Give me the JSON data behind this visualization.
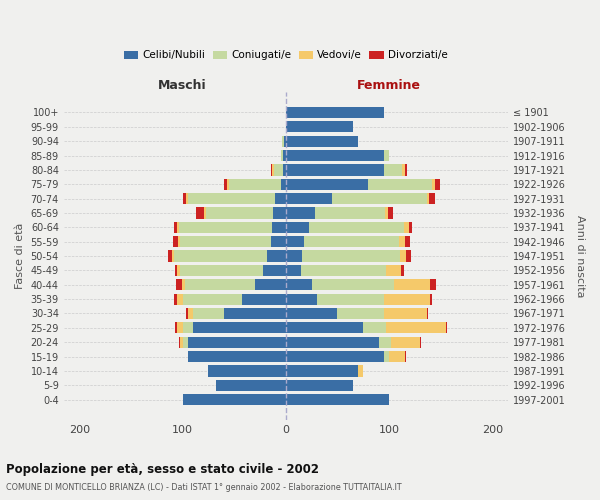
{
  "age_groups_topdown": [
    "100+",
    "95-99",
    "90-94",
    "85-89",
    "80-84",
    "75-79",
    "70-74",
    "65-69",
    "60-64",
    "55-59",
    "50-54",
    "45-49",
    "40-44",
    "35-39",
    "30-34",
    "25-29",
    "20-24",
    "15-19",
    "10-14",
    "5-9",
    "0-4"
  ],
  "birth_years_topdown": [
    "≤ 1901",
    "1902-1906",
    "1907-1911",
    "1912-1916",
    "1917-1921",
    "1922-1926",
    "1927-1931",
    "1932-1936",
    "1937-1941",
    "1942-1946",
    "1947-1951",
    "1952-1956",
    "1957-1961",
    "1962-1966",
    "1967-1971",
    "1972-1976",
    "1977-1981",
    "1982-1986",
    "1987-1991",
    "1992-1996",
    "1997-2001"
  ],
  "colors": {
    "celibi": "#3a6ea5",
    "coniugati": "#c5d9a0",
    "vedovi": "#f5c96a",
    "divorziati": "#cc2222"
  },
  "maschi_bu": {
    "celibi": [
      100,
      68,
      75,
      95,
      95,
      90,
      60,
      42,
      30,
      22,
      18,
      14,
      13,
      12,
      10,
      5,
      3,
      3,
      2,
      0,
      0
    ],
    "coniugati": [
      0,
      0,
      0,
      0,
      5,
      10,
      30,
      58,
      68,
      80,
      90,
      88,
      90,
      65,
      85,
      50,
      8,
      2,
      2,
      0,
      0
    ],
    "vedovi": [
      0,
      0,
      0,
      0,
      2,
      5,
      5,
      5,
      3,
      3,
      2,
      2,
      2,
      2,
      2,
      2,
      2,
      0,
      0,
      0,
      0
    ],
    "divorziati": [
      0,
      0,
      0,
      0,
      1,
      2,
      2,
      3,
      5,
      2,
      4,
      5,
      3,
      8,
      3,
      3,
      1,
      0,
      0,
      0,
      0
    ]
  },
  "femmine_bu": {
    "celibi": [
      100,
      65,
      70,
      95,
      90,
      75,
      50,
      30,
      25,
      15,
      16,
      18,
      22,
      28,
      45,
      80,
      95,
      95,
      70,
      65,
      95
    ],
    "coniugati": [
      0,
      0,
      0,
      5,
      12,
      22,
      45,
      65,
      80,
      82,
      95,
      92,
      92,
      68,
      92,
      62,
      18,
      5,
      0,
      0,
      0
    ],
    "vedovi": [
      0,
      0,
      5,
      15,
      28,
      58,
      42,
      45,
      35,
      15,
      5,
      5,
      5,
      3,
      2,
      2,
      2,
      0,
      0,
      0,
      0
    ],
    "divorziati": [
      0,
      0,
      0,
      1,
      1,
      1,
      1,
      2,
      5,
      2,
      5,
      5,
      3,
      5,
      5,
      5,
      2,
      0,
      0,
      0,
      0
    ]
  },
  "xlim": [
    -215,
    215
  ],
  "xticks": [
    -200,
    -100,
    0,
    100,
    200
  ],
  "xticklabels": [
    "200",
    "100",
    "0",
    "100",
    "200"
  ],
  "title": "Popolazione per età, sesso e stato civile - 2002",
  "subtitle": "COMUNE DI MONTICELLO BRIANZA (LC) - Dati ISTAT 1° gennaio 2002 - Elaborazione TUTTAITALIA.IT",
  "ylabel_left": "Fasce di età",
  "ylabel_right": "Anni di nascita",
  "label_maschi": "Maschi",
  "label_femmine": "Femmine",
  "legend_labels": [
    "Celibi/Nubili",
    "Coniugati/e",
    "Vedovi/e",
    "Divorziati/e"
  ],
  "bg_color": "#f0f0ee",
  "bar_height": 0.78
}
